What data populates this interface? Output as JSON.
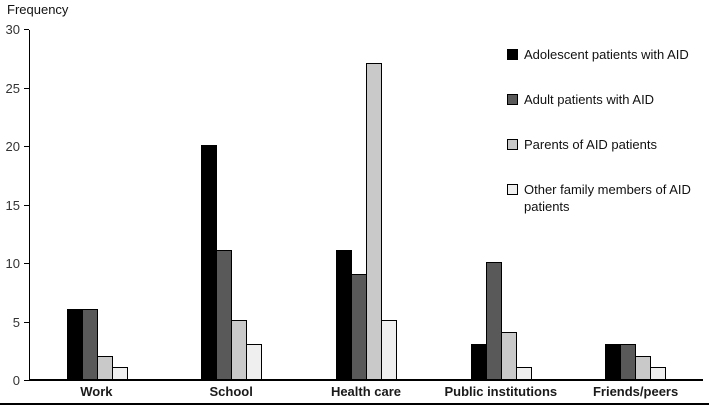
{
  "chart_data": {
    "type": "bar",
    "title": "",
    "ylabel": "Frequency",
    "xlabel": "",
    "ylim": [
      0,
      30
    ],
    "yticks": [
      0,
      5,
      10,
      15,
      20,
      25,
      30
    ],
    "grid": false,
    "legend_position": "top-right",
    "categories": [
      "Work",
      "School",
      "Health care",
      "Public institutions",
      "Friends/peers"
    ],
    "series": [
      {
        "name": "Adolescent patients with AID",
        "color": "#000000",
        "values": [
          6,
          20,
          11,
          3,
          3
        ]
      },
      {
        "name": "Adult patients with AID",
        "color": "#595959",
        "values": [
          6,
          11,
          9,
          10,
          3
        ]
      },
      {
        "name": "Parents of AID patients",
        "color": "#c9c9c9",
        "values": [
          2,
          5,
          27,
          4,
          2
        ]
      },
      {
        "name": "Other family members of AID patients",
        "color": "#efefef",
        "values": [
          1,
          3,
          5,
          1,
          1
        ]
      }
    ]
  }
}
